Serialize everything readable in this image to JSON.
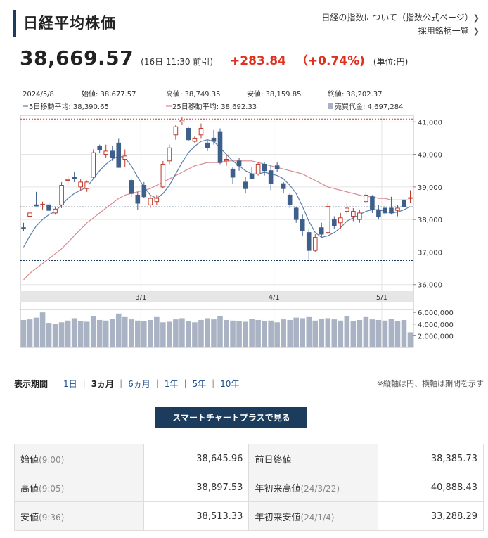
{
  "page_title": "日経平均株価",
  "links": {
    "index_info": "日経の指数について（指数公式ページ）",
    "constituents": "採用銘柄一覧"
  },
  "quote": {
    "price": "38,669.57",
    "time": "(16日 11:30 前引)",
    "change": "+283.84",
    "change_pct": "（+0.74%)",
    "unit": "(単位:円)"
  },
  "chart_header": {
    "date": "2024/5/8",
    "open": "始値: 38,677.57",
    "high": "高値: 38,749.35",
    "low": "安値: 38,159.85",
    "close": "終値: 38,202.37",
    "ma5": "5日移動平均: 38,390.65",
    "ma25": "25日移動平均: 38,692.33",
    "volume": "売買代金: 4,697,284"
  },
  "colors": {
    "up": "#c0392b",
    "down": "#3e5f8a",
    "ma5": "#5a7fb0",
    "ma25": "#d98890",
    "accent": "#1c3c5e",
    "change": "#e0301e"
  },
  "chart_data": {
    "type": "candlestick",
    "x_ticks": [
      "3/1",
      "4/1",
      "5/1"
    ],
    "y_ticks": [
      "41,000",
      "40,000",
      "39,000",
      "38,000",
      "37,000",
      "36,000"
    ],
    "ylim": [
      35800,
      41200
    ],
    "vol_ticks": [
      "6,000,000",
      "4,000,000",
      "2,000,000"
    ],
    "vol_lim": [
      0,
      6500000
    ],
    "ref_lines": [
      41087,
      38386,
      36740
    ],
    "candles": [
      {
        "o": 37750,
        "h": 37900,
        "l": 37650,
        "c": 37720,
        "v": 4700000
      },
      {
        "o": 38100,
        "h": 38280,
        "l": 38050,
        "c": 38200,
        "v": 4800000
      },
      {
        "o": 38450,
        "h": 38850,
        "l": 38400,
        "c": 38420,
        "v": 5100000
      },
      {
        "o": 38450,
        "h": 38550,
        "l": 38300,
        "c": 38470,
        "v": 6000000
      },
      {
        "o": 38450,
        "h": 38550,
        "l": 38250,
        "c": 38280,
        "v": 4200000
      },
      {
        "o": 38200,
        "h": 38380,
        "l": 38150,
        "c": 38320,
        "v": 4000000
      },
      {
        "o": 38450,
        "h": 39150,
        "l": 38350,
        "c": 39050,
        "v": 4300000
      },
      {
        "o": 39200,
        "h": 39350,
        "l": 39050,
        "c": 39230,
        "v": 4600000
      },
      {
        "o": 39300,
        "h": 39450,
        "l": 39150,
        "c": 39260,
        "v": 5000000
      },
      {
        "o": 39000,
        "h": 39250,
        "l": 38900,
        "c": 39150,
        "v": 4500000
      },
      {
        "o": 38950,
        "h": 39200,
        "l": 38850,
        "c": 39150,
        "v": 4400000
      },
      {
        "o": 39300,
        "h": 40150,
        "l": 39250,
        "c": 40050,
        "v": 5300000
      },
      {
        "o": 40250,
        "h": 40300,
        "l": 40050,
        "c": 40150,
        "v": 4700000
      },
      {
        "o": 40000,
        "h": 40300,
        "l": 39900,
        "c": 40100,
        "v": 4600000
      },
      {
        "o": 40100,
        "h": 40250,
        "l": 39800,
        "c": 39900,
        "v": 4900000
      },
      {
        "o": 40350,
        "h": 40500,
        "l": 39600,
        "c": 39600,
        "v": 5800000
      },
      {
        "o": 39850,
        "h": 40150,
        "l": 39600,
        "c": 39950,
        "v": 5200000
      },
      {
        "o": 39200,
        "h": 39250,
        "l": 38700,
        "c": 38800,
        "v": 4800000
      },
      {
        "o": 38750,
        "h": 38850,
        "l": 38300,
        "c": 38500,
        "v": 4600000
      },
      {
        "o": 39050,
        "h": 39150,
        "l": 38650,
        "c": 38700,
        "v": 4500000
      },
      {
        "o": 38450,
        "h": 38750,
        "l": 38350,
        "c": 38650,
        "v": 4700000
      },
      {
        "o": 38550,
        "h": 38750,
        "l": 38450,
        "c": 38650,
        "v": 5200000
      },
      {
        "o": 39000,
        "h": 39800,
        "l": 38950,
        "c": 39700,
        "v": 4300000
      },
      {
        "o": 39800,
        "h": 40300,
        "l": 39700,
        "c": 40200,
        "v": 4400000
      },
      {
        "o": 40600,
        "h": 40900,
        "l": 40450,
        "c": 40850,
        "v": 4800000
      },
      {
        "o": 41000,
        "h": 41150,
        "l": 40900,
        "c": 41050,
        "v": 5000000
      },
      {
        "o": 40800,
        "h": 40850,
        "l": 40400,
        "c": 40450,
        "v": 4500000
      },
      {
        "o": 40400,
        "h": 40550,
        "l": 40350,
        "c": 40500,
        "v": 4300000
      },
      {
        "o": 40600,
        "h": 40950,
        "l": 40500,
        "c": 40800,
        "v": 4700000
      },
      {
        "o": 40350,
        "h": 40450,
        "l": 40100,
        "c": 40200,
        "v": 5000000
      },
      {
        "o": 40500,
        "h": 40750,
        "l": 40300,
        "c": 40400,
        "v": 4800000
      },
      {
        "o": 40700,
        "h": 40800,
        "l": 39700,
        "c": 39750,
        "v": 5300000
      },
      {
        "o": 39800,
        "h": 40000,
        "l": 39650,
        "c": 39850,
        "v": 4700000
      },
      {
        "o": 39550,
        "h": 39600,
        "l": 39100,
        "c": 39300,
        "v": 4600000
      },
      {
        "o": 39800,
        "h": 39900,
        "l": 39500,
        "c": 39650,
        "v": 4500000
      },
      {
        "o": 39150,
        "h": 39300,
        "l": 38800,
        "c": 38950,
        "v": 4400000
      },
      {
        "o": 39400,
        "h": 39600,
        "l": 39250,
        "c": 39250,
        "v": 4900000
      },
      {
        "o": 39400,
        "h": 39750,
        "l": 39350,
        "c": 39700,
        "v": 4700000
      },
      {
        "o": 39700,
        "h": 39750,
        "l": 39350,
        "c": 39500,
        "v": 4500000
      },
      {
        "o": 39500,
        "h": 39650,
        "l": 38900,
        "c": 39100,
        "v": 4600000
      },
      {
        "o": 39650,
        "h": 39750,
        "l": 39450,
        "c": 39550,
        "v": 4300000
      },
      {
        "o": 39100,
        "h": 39150,
        "l": 38800,
        "c": 38950,
        "v": 4800000
      },
      {
        "o": 38750,
        "h": 38800,
        "l": 38350,
        "c": 38450,
        "v": 4700000
      },
      {
        "o": 38350,
        "h": 38400,
        "l": 37900,
        "c": 38000,
        "v": 5100000
      },
      {
        "o": 38000,
        "h": 38150,
        "l": 37500,
        "c": 37650,
        "v": 5000000
      },
      {
        "o": 37600,
        "h": 37700,
        "l": 36750,
        "c": 37050,
        "v": 5200000
      },
      {
        "o": 37050,
        "h": 37550,
        "l": 37000,
        "c": 37450,
        "v": 4600000
      },
      {
        "o": 37750,
        "h": 37900,
        "l": 37450,
        "c": 37550,
        "v": 4900000
      },
      {
        "o": 37600,
        "h": 38500,
        "l": 37550,
        "c": 38400,
        "v": 5000000
      },
      {
        "o": 38000,
        "h": 38100,
        "l": 37700,
        "c": 37800,
        "v": 4800000
      },
      {
        "o": 37900,
        "h": 38200,
        "l": 37700,
        "c": 38050,
        "v": 4600000
      },
      {
        "o": 38250,
        "h": 38500,
        "l": 38150,
        "c": 38350,
        "v": 5400000
      },
      {
        "o": 38100,
        "h": 38350,
        "l": 37950,
        "c": 38250,
        "v": 4500000
      },
      {
        "o": 38000,
        "h": 38300,
        "l": 37900,
        "c": 38200,
        "v": 4700000
      },
      {
        "o": 38550,
        "h": 38850,
        "l": 38500,
        "c": 38750,
        "v": 5200000
      },
      {
        "o": 38700,
        "h": 38750,
        "l": 38200,
        "c": 38300,
        "v": 4800000
      },
      {
        "o": 38300,
        "h": 38450,
        "l": 38000,
        "c": 38100,
        "v": 4700000
      },
      {
        "o": 38350,
        "h": 38450,
        "l": 38100,
        "c": 38200,
        "v": 4600000
      },
      {
        "o": 38350,
        "h": 38700,
        "l": 38150,
        "c": 38200,
        "v": 4900000
      },
      {
        "o": 38280,
        "h": 38450,
        "l": 38100,
        "c": 38350,
        "v": 4500000
      },
      {
        "o": 38600,
        "h": 38700,
        "l": 38350,
        "c": 38400,
        "v": 4700000
      },
      {
        "o": 38650,
        "h": 38900,
        "l": 38500,
        "c": 38670,
        "v": 2600000
      }
    ],
    "ma5": [
      37150,
      37500,
      37800,
      38000,
      38150,
      38250,
      38450,
      38650,
      38800,
      38900,
      39000,
      39250,
      39500,
      39700,
      39850,
      39950,
      39900,
      39650,
      39300,
      39000,
      38750,
      38650,
      38800,
      39050,
      39400,
      39750,
      40050,
      40250,
      40400,
      40450,
      40400,
      40200,
      40000,
      39800,
      39650,
      39500,
      39400,
      39400,
      39450,
      39400,
      39350,
      39250,
      39050,
      38800,
      38400,
      37950,
      37600,
      37450,
      37500,
      37600,
      37750,
      37950,
      38050,
      38150,
      38250,
      38300,
      38300,
      38250,
      38200,
      38230,
      38300,
      38400
    ],
    "ma25": [
      36150,
      36350,
      36500,
      36650,
      36800,
      36950,
      37100,
      37300,
      37500,
      37700,
      37900,
      38050,
      38200,
      38350,
      38500,
      38650,
      38750,
      38800,
      38850,
      38900,
      38950,
      39050,
      39150,
      39250,
      39350,
      39450,
      39550,
      39650,
      39700,
      39750,
      39750,
      39750,
      39800,
      39800,
      39800,
      39800,
      39800,
      39750,
      39700,
      39650,
      39600,
      39550,
      39500,
      39450,
      39400,
      39300,
      39200,
      39100,
      39000,
      38950,
      38900,
      38850,
      38800,
      38750,
      38700,
      38700,
      38650,
      38650,
      38600,
      38600,
      38600,
      38600
    ]
  },
  "period": {
    "label": "表示期間",
    "items": [
      "1日",
      "3ヵ月",
      "6ヵ月",
      "1年",
      "5年",
      "10年"
    ],
    "note": "※縦軸は円、横軸は期間を示す"
  },
  "smart_chart_button": "スマートチャートプラスで見る",
  "stats": [
    {
      "l1": "始値",
      "l1sub": "(9:00)",
      "v1": "38,645.96",
      "l2": "前日終値",
      "l2sub": "",
      "v2": "38,385.73"
    },
    {
      "l1": "高値",
      "l1sub": "(9:05)",
      "v1": "38,897.53",
      "l2": "年初来高値",
      "l2sub": "(24/3/22)",
      "v2": "40,888.43"
    },
    {
      "l1": "安値",
      "l1sub": "(9:36)",
      "v1": "38,513.33",
      "l2": "年初来安値",
      "l2sub": "(24/1/4)",
      "v2": "33,288.29"
    }
  ]
}
